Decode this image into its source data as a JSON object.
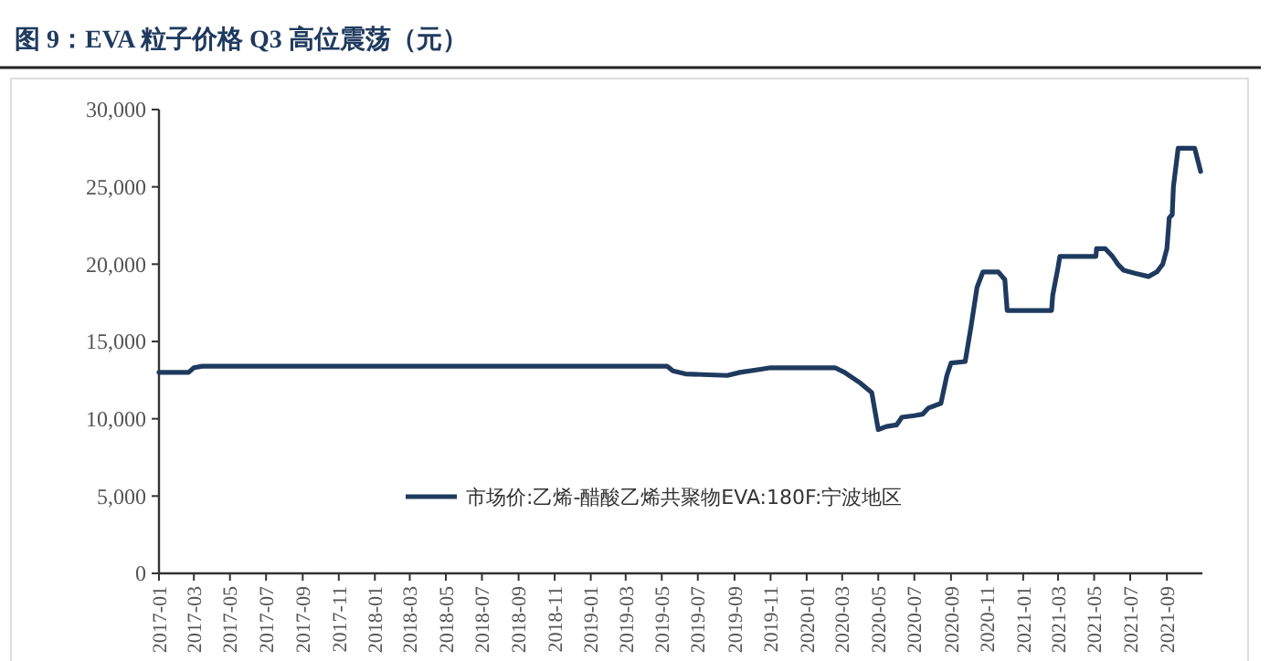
{
  "chart_data": {
    "type": "line",
    "title": "图 9：EVA 粒子价格 Q3 高位震荡（元）",
    "x": [
      "2017-01-01",
      "2017-02-20",
      "2017-03-01",
      "2017-03-15",
      "2019-05-10",
      "2019-05-20",
      "2019-06-10",
      "2019-08-20",
      "2019-09-10",
      "2019-10-15",
      "2019-11-01",
      "2020-02-18",
      "2020-03-05",
      "2020-04-01",
      "2020-04-20",
      "2020-05-01",
      "2020-05-15",
      "2020-06-01",
      "2020-06-10",
      "2020-07-01",
      "2020-07-15",
      "2020-07-25",
      "2020-08-15",
      "2020-08-25",
      "2020-09-01",
      "2020-09-25",
      "2020-10-05",
      "2020-10-15",
      "2020-10-25",
      "2020-11-20",
      "2020-12-01",
      "2020-12-05",
      "2021-02-18",
      "2021-02-20",
      "2021-03-01",
      "2021-03-04",
      "2021-05-04",
      "2021-05-05",
      "2021-05-20",
      "2021-06-01",
      "2021-06-10",
      "2021-06-20",
      "2021-07-10",
      "2021-08-01",
      "2021-08-15",
      "2021-08-25",
      "2021-09-01",
      "2021-09-05",
      "2021-09-10",
      "2021-09-12",
      "2021-09-20",
      "2021-10-18",
      "2021-10-28"
    ],
    "series": [
      {
        "name": "市场价:乙烯-醋酸乙烯共聚物EVA:180F:宁波地区",
        "color": "#1f3a5f",
        "values": [
          13000,
          13000,
          13300,
          13400,
          13400,
          13100,
          12900,
          12800,
          13000,
          13200,
          13300,
          13300,
          13000,
          12300,
          11700,
          9300,
          9500,
          9600,
          10100,
          10200,
          10300,
          10700,
          11000,
          12800,
          13600,
          13700,
          16000,
          18500,
          19500,
          19500,
          19000,
          17000,
          17000,
          18000,
          19800,
          20500,
          20500,
          21000,
          21000,
          20500,
          20000,
          19600,
          19400,
          19200,
          19500,
          20000,
          21000,
          23000,
          23200,
          25000,
          27500,
          27500,
          26000
        ]
      }
    ],
    "xlim": [
      "2017-01-01",
      "2021-10-31"
    ],
    "xticks": [
      {
        "value": "2017-01",
        "label": "2017-01"
      },
      {
        "value": "2017-03",
        "label": "2017-03"
      },
      {
        "value": "2017-05",
        "label": "2017-05"
      },
      {
        "value": "2017-07",
        "label": "2017-07"
      },
      {
        "value": "2017-09",
        "label": "2017-09"
      },
      {
        "value": "2017-11",
        "label": "2017-11"
      },
      {
        "value": "2018-01",
        "label": "2018-01"
      },
      {
        "value": "2018-03",
        "label": "2018-03"
      },
      {
        "value": "2018-05",
        "label": "2018-05"
      },
      {
        "value": "2018-07",
        "label": "2018-07"
      },
      {
        "value": "2018-09",
        "label": "2018-09"
      },
      {
        "value": "2018-11",
        "label": "2018-11"
      },
      {
        "value": "2019-01",
        "label": "2019-01"
      },
      {
        "value": "2019-03",
        "label": "2019-03"
      },
      {
        "value": "2019-05",
        "label": "2019-05"
      },
      {
        "value": "2019-07",
        "label": "2019-07"
      },
      {
        "value": "2019-09",
        "label": "2019-09"
      },
      {
        "value": "2019-11",
        "label": "2019-11"
      },
      {
        "value": "2020-01",
        "label": "2020-01"
      },
      {
        "value": "2020-03",
        "label": "2020-03"
      },
      {
        "value": "2020-05",
        "label": "2020-05"
      },
      {
        "value": "2020-07",
        "label": "2020-07"
      },
      {
        "value": "2020-09",
        "label": "2020-09"
      },
      {
        "value": "2020-11",
        "label": "2020-11"
      },
      {
        "value": "2021-01",
        "label": "2021-01"
      },
      {
        "value": "2021-03",
        "label": "2021-03"
      },
      {
        "value": "2021-05",
        "label": "2021-05"
      },
      {
        "value": "2021-07",
        "label": "2021-07"
      },
      {
        "value": "2021-09",
        "label": "2021-09"
      }
    ],
    "ylim": [
      0,
      30000
    ],
    "yticks": [
      {
        "value": 0,
        "label": "0"
      },
      {
        "value": 5000,
        "label": "5,000"
      },
      {
        "value": 10000,
        "label": "10,000"
      },
      {
        "value": 15000,
        "label": "15,000"
      },
      {
        "value": 20000,
        "label": "20,000"
      },
      {
        "value": 25000,
        "label": "25,000"
      },
      {
        "value": 30000,
        "label": "30,000"
      }
    ],
    "legend": "bottom",
    "grid": false,
    "marker": "none",
    "line_style": "solid"
  }
}
